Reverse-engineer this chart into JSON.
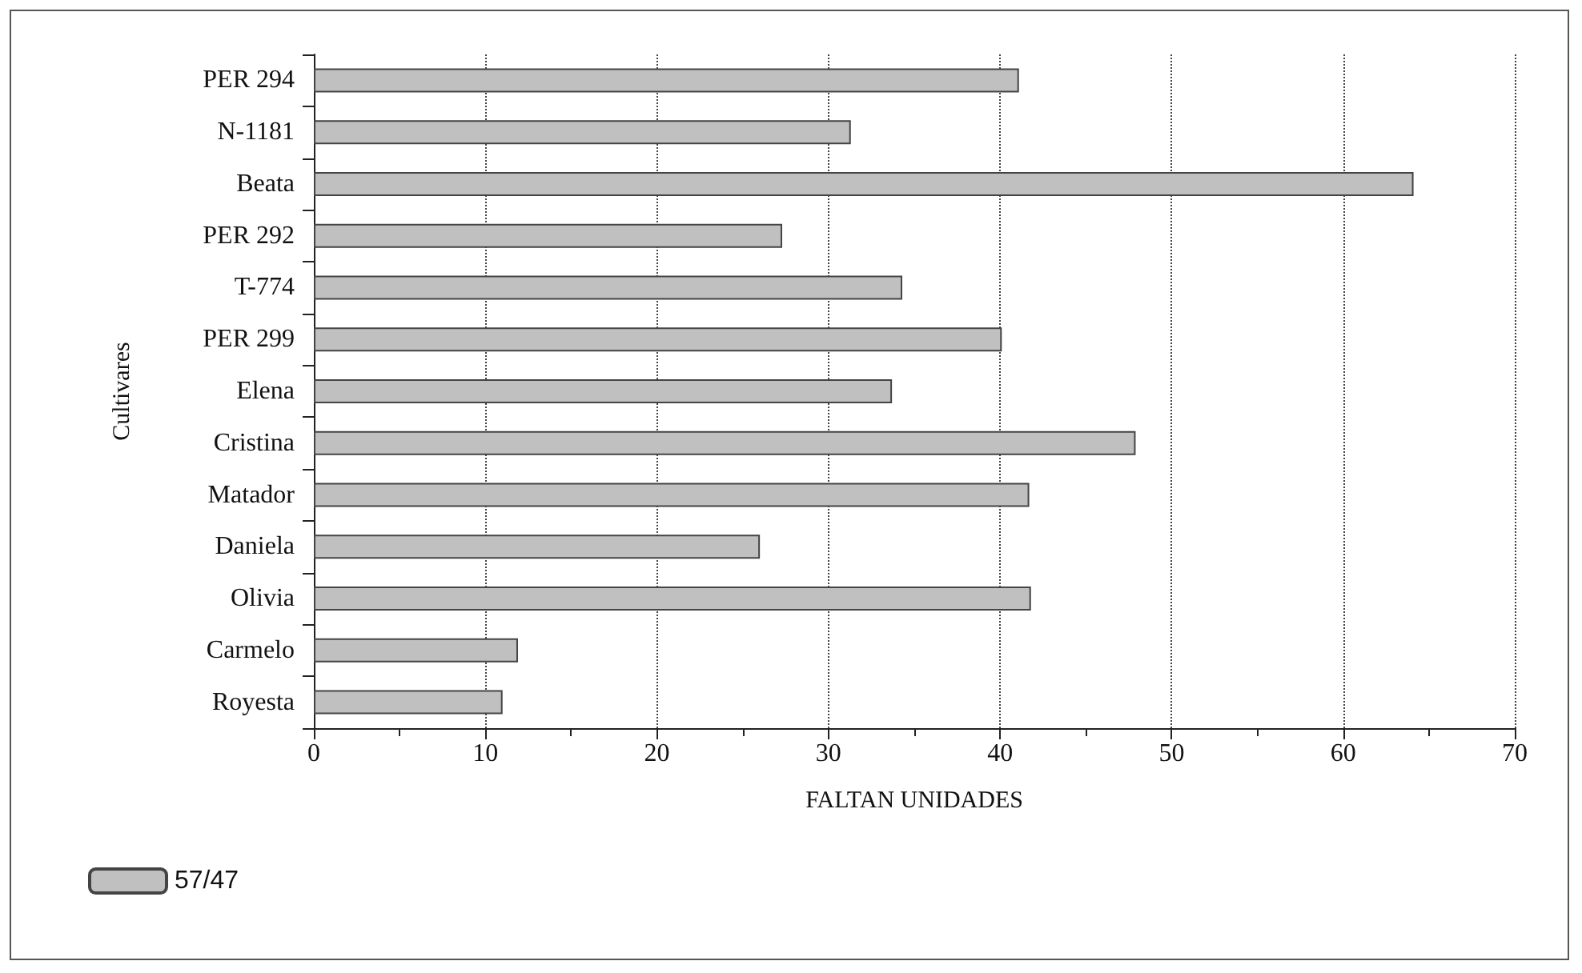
{
  "chart_data": {
    "type": "bar",
    "orientation": "horizontal",
    "xlabel": "FALTAN UNIDADES",
    "ylabel": "Cultivares",
    "categories": [
      "PER 294",
      "N-1181",
      "Beata",
      "PER 292",
      "T-774",
      "PER 299",
      "Elena",
      "Cristina",
      "Matador",
      "Daniela",
      "Olivia",
      "Carmelo",
      "Royesta"
    ],
    "series": [
      {
        "name": "57/47",
        "color": "#c0c0c0",
        "values": [
          41.1,
          31.3,
          64.1,
          27.3,
          34.3,
          40.1,
          33.7,
          47.9,
          41.7,
          26.0,
          41.8,
          11.9,
          11.0
        ]
      }
    ],
    "xlim": [
      0,
      70
    ],
    "xticks": [
      0,
      10,
      20,
      30,
      40,
      50,
      60,
      70
    ],
    "grid": "x",
    "legend": "bottom left"
  }
}
